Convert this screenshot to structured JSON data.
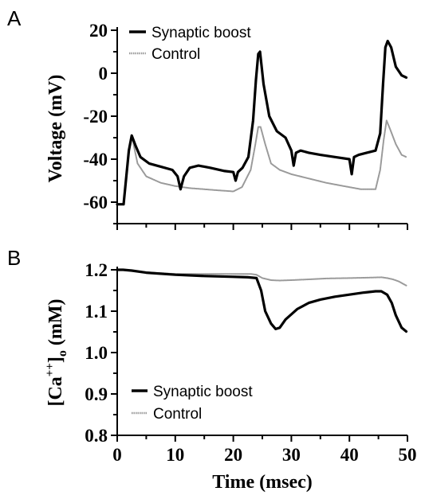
{
  "chart_data": [
    {
      "panel": "A",
      "type": "line",
      "ylabel": "Voltage (mV)",
      "xlim": [
        0,
        50
      ],
      "ylim": [
        -70,
        20
      ],
      "yticks": [
        20,
        0,
        -20,
        -40,
        -60
      ],
      "grid": false,
      "legend": {
        "placement": "top-left"
      },
      "colors": {
        "Synaptic boost": "#000000",
        "Control": "#9a9a9a"
      },
      "series": [
        {
          "name": "Synaptic boost",
          "x": [
            0,
            1.1,
            2.0,
            2.5,
            3.2,
            4.0,
            5.5,
            7.5,
            9.5,
            10.4,
            10.9,
            11.5,
            12.5,
            14.0,
            16.0,
            18.5,
            20.0,
            20.4,
            20.8,
            21.6,
            22.6,
            23.4,
            23.9,
            24.3,
            24.6,
            25.2,
            26.2,
            27.5,
            29.0,
            30.0,
            30.4,
            30.8,
            31.6,
            33.0,
            35.0,
            37.5,
            40.0,
            40.4,
            40.8,
            41.6,
            43.0,
            44.5,
            45.3,
            45.8,
            46.2,
            46.6,
            47.2,
            48.0,
            49.0,
            49.8
          ],
          "y": [
            -61,
            -61,
            -36,
            -29,
            -34,
            -39,
            -42,
            -43.5,
            -45,
            -48,
            -54,
            -48,
            -44,
            -43,
            -44,
            -45.5,
            -46,
            -50,
            -46,
            -44,
            -39,
            -22,
            -3,
            9,
            10,
            -5,
            -20,
            -27,
            -30,
            -36,
            -43,
            -37,
            -36,
            -37,
            -38,
            -39,
            -40,
            -47,
            -39,
            -38,
            -37,
            -36,
            -28,
            -5,
            12,
            15,
            12,
            3,
            -1,
            -2
          ]
        },
        {
          "name": "Control",
          "x": [
            0,
            1.1,
            2.0,
            2.5,
            3.5,
            5.0,
            7.5,
            10.0,
            12.5,
            15.0,
            17.5,
            20.0,
            21.5,
            23.0,
            23.8,
            24.3,
            24.7,
            25.5,
            26.5,
            28.0,
            30.0,
            33.0,
            36.0,
            39.0,
            42.0,
            44.5,
            45.3,
            45.9,
            46.4,
            47.0,
            48.0,
            49.0,
            49.8
          ],
          "y": [
            -61,
            -61,
            -36,
            -29,
            -42,
            -48,
            -51,
            -52.5,
            -53.5,
            -54,
            -54.5,
            -55,
            -53,
            -45,
            -33,
            -25,
            -25,
            -33,
            -42,
            -45,
            -47,
            -49,
            -51,
            -52.5,
            -54,
            -54,
            -45,
            -31,
            -22,
            -26,
            -33,
            -38,
            -39
          ]
        }
      ]
    },
    {
      "panel": "B",
      "type": "line",
      "xlabel": "Time (msec)",
      "ylabel": "[Ca++]o (mM)",
      "ylabel_parts": {
        "main": "[Ca",
        "sup": "++",
        "close": "]",
        "sub": "o",
        "unit": " (mM)"
      },
      "xlim": [
        0,
        50
      ],
      "ylim": [
        0.8,
        1.2
      ],
      "xticks": [
        0,
        10,
        20,
        30,
        40,
        50
      ],
      "yticks": [
        1.2,
        1.1,
        1.0,
        0.9,
        0.8
      ],
      "ytick_labels": [
        "1.2",
        "1.1",
        "1.0",
        "0.9",
        "0.8"
      ],
      "grid": false,
      "legend": {
        "placement": "bottom-left"
      },
      "colors": {
        "Synaptic boost": "#000000",
        "Control": "#9a9a9a"
      },
      "series": [
        {
          "name": "Synaptic boost",
          "x": [
            0,
            1.0,
            2.5,
            5.0,
            10.0,
            15.0,
            20.0,
            22.5,
            24.0,
            24.8,
            25.5,
            26.5,
            27.3,
            28.0,
            29.0,
            31.0,
            33.0,
            35.0,
            37.5,
            40.0,
            42.5,
            44.5,
            45.5,
            46.5,
            47.3,
            48.0,
            49.0,
            49.8
          ],
          "y": [
            1.2,
            1.2,
            1.198,
            1.193,
            1.188,
            1.185,
            1.183,
            1.182,
            1.18,
            1.15,
            1.1,
            1.07,
            1.057,
            1.06,
            1.08,
            1.105,
            1.12,
            1.128,
            1.135,
            1.14,
            1.145,
            1.148,
            1.148,
            1.14,
            1.12,
            1.09,
            1.06,
            1.051
          ]
        },
        {
          "name": "Control",
          "x": [
            0,
            1.0,
            2.5,
            5.0,
            10.0,
            15.0,
            20.0,
            23.0,
            24.0,
            25.0,
            26.5,
            28.0,
            30.0,
            33.0,
            36.0,
            40.0,
            43.0,
            45.5,
            46.5,
            47.5,
            48.5,
            49.8
          ],
          "y": [
            1.2,
            1.2,
            1.198,
            1.194,
            1.19,
            1.19,
            1.19,
            1.19,
            1.188,
            1.18,
            1.175,
            1.174,
            1.175,
            1.177,
            1.179,
            1.18,
            1.181,
            1.182,
            1.18,
            1.177,
            1.172,
            1.162
          ]
        }
      ]
    }
  ]
}
